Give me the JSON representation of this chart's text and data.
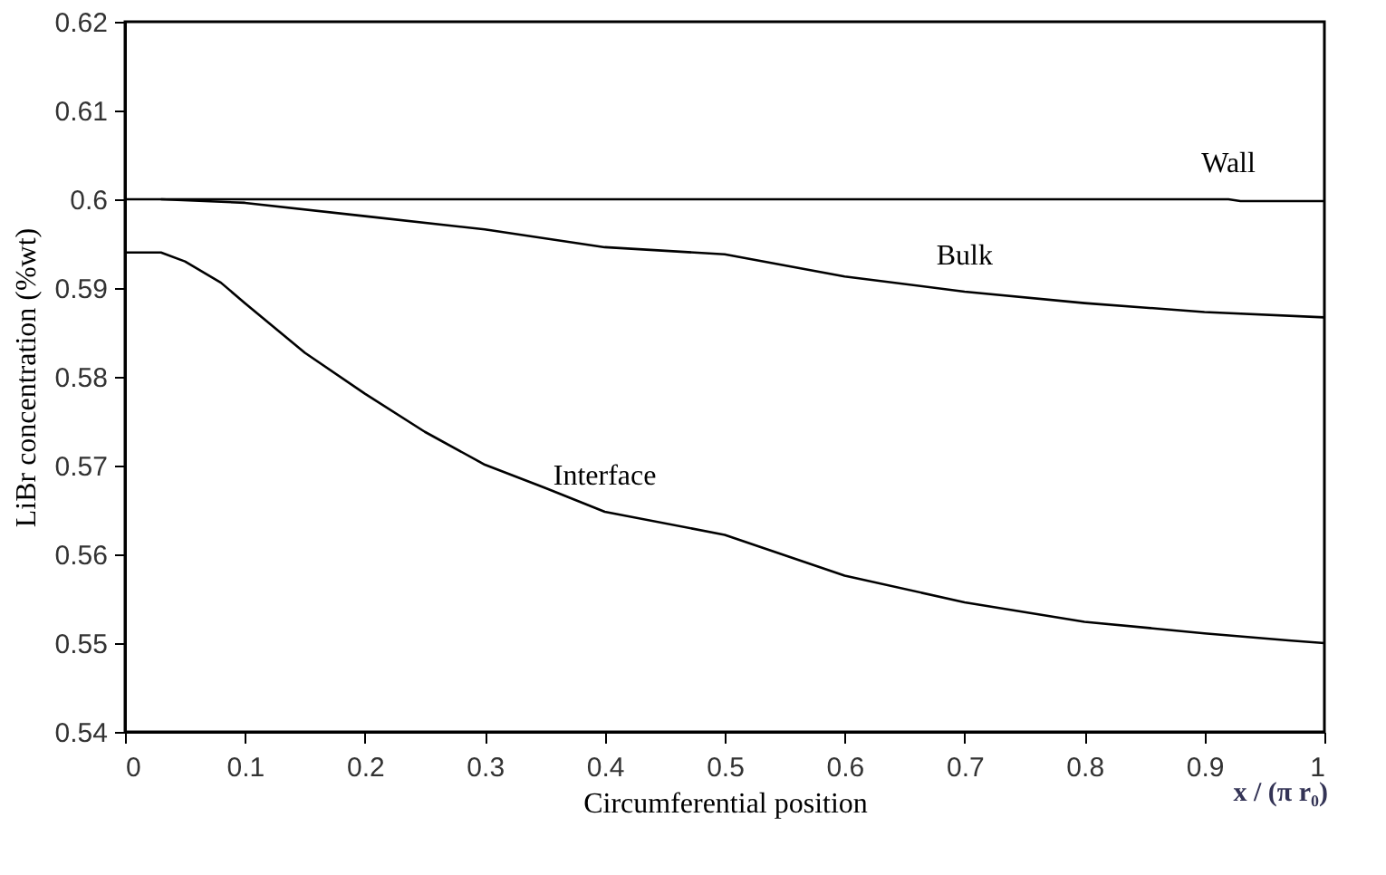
{
  "chart_data": {
    "type": "line",
    "xlabel": "Circumferential position",
    "ylabel": "LiBr concentration (%wt)",
    "annotations": [
      "x / (π r₀)"
    ],
    "xlim": [
      0,
      1
    ],
    "xticks": [
      0,
      0.1,
      0.2,
      0.3,
      0.4,
      0.5,
      0.6,
      0.7,
      0.8,
      0.9,
      1
    ],
    "ylim": [
      0.54,
      0.62
    ],
    "yticks": [
      0.54,
      0.55,
      0.56,
      0.57,
      0.58,
      0.59,
      0.6,
      0.61,
      0.62
    ],
    "grid": false,
    "legend": false,
    "marker": "none",
    "line_style": "solid",
    "series": [
      {
        "name": "Wall",
        "color": "#000000",
        "x": [
          0,
          0.3,
          0.6,
          0.92,
          0.93,
          1
        ],
        "values": [
          0.6,
          0.6,
          0.6,
          0.6,
          0.5998,
          0.5998
        ]
      },
      {
        "name": "Bulk",
        "color": "#000000",
        "x": [
          0.03,
          0.1,
          0.2,
          0.3,
          0.4,
          0.5,
          0.6,
          0.7,
          0.8,
          0.9,
          1
        ],
        "values": [
          0.6,
          0.5996,
          0.5981,
          0.5966,
          0.5946,
          0.5938,
          0.5913,
          0.5896,
          0.5883,
          0.5873,
          0.5867
        ]
      },
      {
        "name": "Interface",
        "color": "#000000",
        "x": [
          0,
          0.03,
          0.05,
          0.08,
          0.1,
          0.15,
          0.2,
          0.25,
          0.3,
          0.35,
          0.4,
          0.5,
          0.6,
          0.7,
          0.8,
          0.9,
          0.97,
          1
        ],
        "values": [
          0.594,
          0.594,
          0.593,
          0.5906,
          0.5883,
          0.5827,
          0.5781,
          0.5738,
          0.5701,
          0.5675,
          0.5648,
          0.5622,
          0.5576,
          0.5546,
          0.5524,
          0.5511,
          0.5503,
          0.55
        ]
      }
    ]
  }
}
